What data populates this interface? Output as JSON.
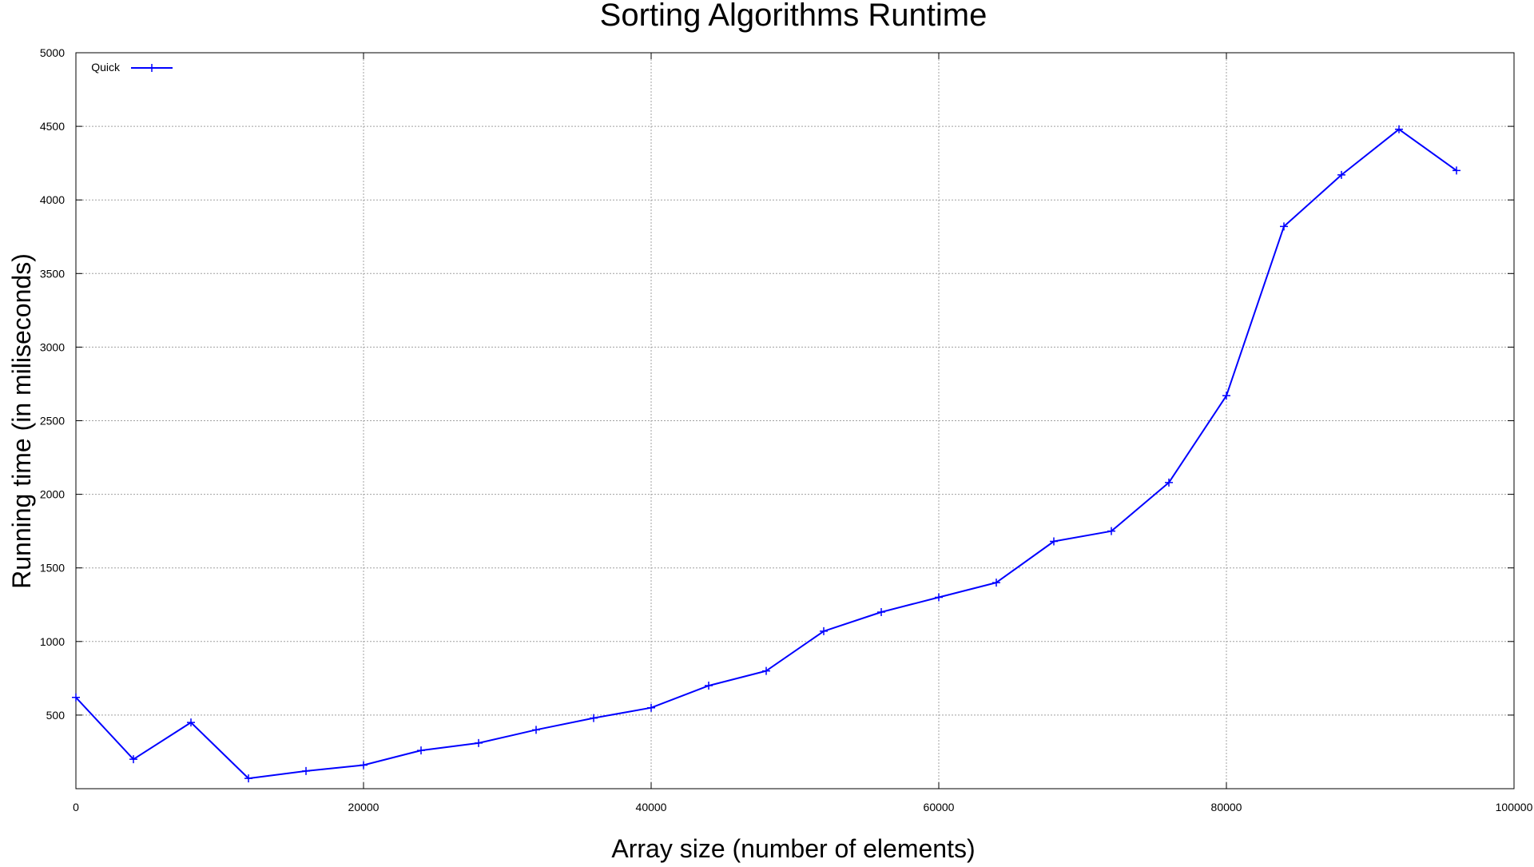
{
  "chart_data": {
    "type": "line",
    "title": "Sorting Algorithms Runtime",
    "xlabel": "Array size (number of elements)",
    "ylabel": "Running time (in miliseconds)",
    "xlim": [
      0,
      100000
    ],
    "ylim": [
      0,
      5000
    ],
    "xticks": [
      0,
      20000,
      40000,
      60000,
      80000,
      100000
    ],
    "yticks": [
      500,
      1000,
      1500,
      2000,
      2500,
      3000,
      3500,
      4000,
      4500,
      5000
    ],
    "grid": true,
    "legend_position": "top-left",
    "series": [
      {
        "name": "Quick",
        "color": "#0000ff",
        "marker": "plus",
        "x": [
          0,
          4000,
          8000,
          12000,
          16000,
          20000,
          24000,
          28000,
          32000,
          36000,
          40000,
          44000,
          48000,
          52000,
          56000,
          60000,
          64000,
          68000,
          72000,
          76000,
          80000,
          84000,
          88000,
          92000,
          96000
        ],
        "y": [
          620,
          200,
          450,
          70,
          120,
          160,
          260,
          310,
          400,
          480,
          550,
          700,
          800,
          1070,
          1200,
          1300,
          1400,
          1680,
          1750,
          2080,
          2670,
          3820,
          4170,
          4480,
          4200
        ]
      }
    ]
  }
}
